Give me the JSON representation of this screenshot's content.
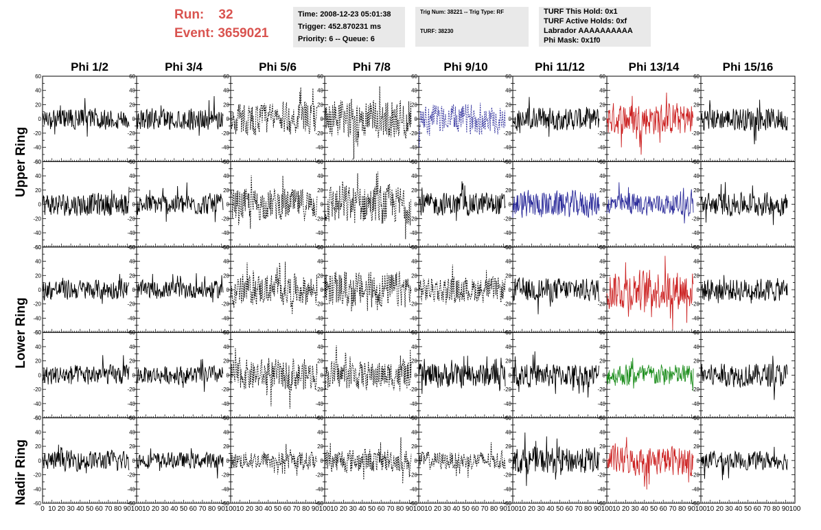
{
  "header": {
    "run_label": "Run:",
    "run_value": "32",
    "event_label": "Event:",
    "event_value": "3659021",
    "accent_color": "#d9534f"
  },
  "info_boxes": {
    "time": {
      "time_line": "Time: 2008-12-23 05:01:38",
      "trigger_line": "Trigger: 452.870231 ms",
      "priority_line": "Priority: 6 -- Queue: 6"
    },
    "trig": {
      "trig_line": "Trig Num: 38221 -- Trig Type: RF",
      "turf_line": "TURF: 38230"
    },
    "turf": {
      "hold_line": "TURF This Hold: 0x1",
      "active_line": "TURF Active Holds: 0xf",
      "labrador_line": "Labrador AAAAAAAAAA",
      "phimask_line": "Phi Mask: 0x1f0"
    }
  },
  "chart_data": {
    "type": "line",
    "columns": [
      "Phi 1/2",
      "Phi 3/4",
      "Phi 5/6",
      "Phi 7/8",
      "Phi 9/10",
      "Phi 11/12",
      "Phi 13/14",
      "Phi 15/16"
    ],
    "ring_labels": [
      "Upper Ring",
      "Lower Ring",
      "Nadir Ring"
    ],
    "ylim": [
      -60,
      60
    ],
    "yticks": [
      -60,
      -40,
      -20,
      0,
      20,
      40,
      60
    ],
    "xlim": [
      0,
      100
    ],
    "xticks": [
      0,
      10,
      20,
      30,
      40,
      50,
      60,
      70,
      80,
      90,
      100
    ],
    "sample_range": [
      0,
      92
    ],
    "line_styles": {
      "solid": "solid",
      "dashed": "dashed"
    },
    "colors": {
      "black": "#000000",
      "blue": "#2b2b9a",
      "red": "#cc2222",
      "green": "#1a8c1a"
    },
    "panels": [
      [
        {
          "style": "solid",
          "color": "black",
          "amplitude": 12
        },
        {
          "style": "solid",
          "color": "black",
          "amplitude": 12
        },
        {
          "style": "dashed",
          "color": "black",
          "amplitude": 18
        },
        {
          "style": "dashed",
          "color": "black",
          "amplitude": 22
        },
        {
          "style": "dashed",
          "color": "blue",
          "amplitude": 16
        },
        {
          "style": "solid",
          "color": "black",
          "amplitude": 13
        },
        {
          "style": "solid",
          "color": "red",
          "amplitude": 18
        },
        {
          "style": "solid",
          "color": "black",
          "amplitude": 13
        }
      ],
      [
        {
          "style": "solid",
          "color": "black",
          "amplitude": 13
        },
        {
          "style": "solid",
          "color": "black",
          "amplitude": 12
        },
        {
          "style": "dashed",
          "color": "black",
          "amplitude": 18
        },
        {
          "style": "dashed",
          "color": "black",
          "amplitude": 22
        },
        {
          "style": "solid",
          "color": "black",
          "amplitude": 13
        },
        {
          "style": "solid",
          "color": "blue",
          "amplitude": 15
        },
        {
          "style": "solid",
          "color": "blue",
          "amplitude": 12
        },
        {
          "style": "solid",
          "color": "black",
          "amplitude": 13
        }
      ],
      [
        {
          "style": "solid",
          "color": "black",
          "amplitude": 11
        },
        {
          "style": "solid",
          "color": "black",
          "amplitude": 10
        },
        {
          "style": "dashed",
          "color": "black",
          "amplitude": 17
        },
        {
          "style": "dashed",
          "color": "black",
          "amplitude": 20
        },
        {
          "style": "dashed",
          "color": "black",
          "amplitude": 14
        },
        {
          "style": "solid",
          "color": "black",
          "amplitude": 13
        },
        {
          "style": "solid",
          "color": "red",
          "amplitude": 22
        },
        {
          "style": "solid",
          "color": "black",
          "amplitude": 13
        }
      ],
      [
        {
          "style": "solid",
          "color": "black",
          "amplitude": 11
        },
        {
          "style": "solid",
          "color": "black",
          "amplitude": 10
        },
        {
          "style": "dashed",
          "color": "black",
          "amplitude": 17
        },
        {
          "style": "dashed",
          "color": "black",
          "amplitude": 16
        },
        {
          "style": "solid",
          "color": "black",
          "amplitude": 14
        },
        {
          "style": "solid",
          "color": "black",
          "amplitude": 13
        },
        {
          "style": "solid",
          "color": "green",
          "amplitude": 12
        },
        {
          "style": "solid",
          "color": "black",
          "amplitude": 13
        }
      ],
      [
        {
          "style": "solid",
          "color": "black",
          "amplitude": 11
        },
        {
          "style": "solid",
          "color": "black",
          "amplitude": 9
        },
        {
          "style": "dashed",
          "color": "black",
          "amplitude": 10
        },
        {
          "style": "dashed",
          "color": "black",
          "amplitude": 13
        },
        {
          "style": "dashed",
          "color": "black",
          "amplitude": 10
        },
        {
          "style": "solid",
          "color": "black",
          "amplitude": 15
        },
        {
          "style": "solid",
          "color": "red",
          "amplitude": 16
        },
        {
          "style": "solid",
          "color": "black",
          "amplitude": 10
        }
      ]
    ]
  }
}
